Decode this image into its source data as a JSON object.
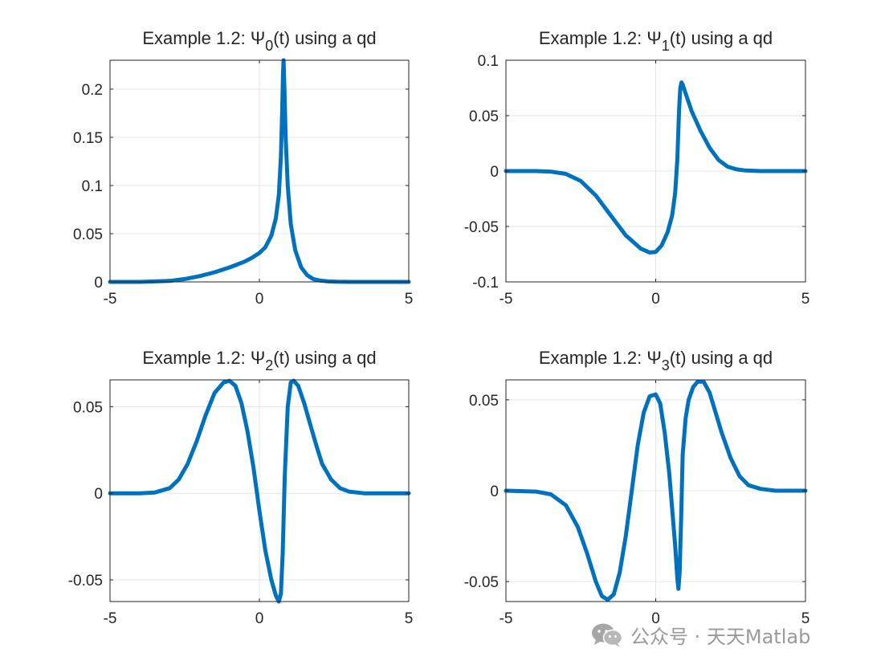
{
  "watermark": {
    "text": "公众号 · 天天Matlab",
    "icon": "wechat-icon"
  },
  "line_color": "#0072BD",
  "chart_data": [
    {
      "type": "line",
      "title": {
        "prefix": "Example 1.2: ",
        "symbol": "Ψ",
        "subscript": "0",
        "suffix": "(t) using a qd"
      },
      "xlim": [
        -5,
        5
      ],
      "ylim": [
        0,
        0.23
      ],
      "xticks": [
        -5,
        0,
        5
      ],
      "xtick_labels": [
        "-5",
        "0",
        "5"
      ],
      "yticks": [
        0,
        0.05,
        0.1,
        0.15,
        0.2
      ],
      "ytick_labels": [
        "0",
        "0.05",
        "0.1",
        "0.15",
        "0.2"
      ],
      "grid": true,
      "series": [
        {
          "x": [
            -5,
            -4,
            -3.5,
            -3,
            -2.5,
            -2,
            -1.5,
            -1,
            -0.5,
            -0.25,
            0,
            0.2,
            0.4,
            0.55,
            0.65,
            0.72,
            0.76,
            0.79,
            0.81,
            0.84,
            0.88,
            0.95,
            1.05,
            1.2,
            1.4,
            1.6,
            1.8,
            2.0,
            2.3,
            2.6,
            3,
            4,
            5
          ],
          "y": [
            0,
            0,
            0.0005,
            0.001,
            0.003,
            0.006,
            0.01,
            0.015,
            0.021,
            0.025,
            0.03,
            0.036,
            0.048,
            0.066,
            0.09,
            0.13,
            0.175,
            0.215,
            0.23,
            0.2,
            0.15,
            0.1,
            0.06,
            0.033,
            0.015,
            0.007,
            0.003,
            0.0015,
            0.0005,
            0.0002,
            0,
            0,
            0
          ]
        }
      ]
    },
    {
      "type": "line",
      "title": {
        "prefix": "Example 1.2: ",
        "symbol": "Ψ",
        "subscript": "1",
        "suffix": "(t) using a qd"
      },
      "xlim": [
        -5,
        5
      ],
      "ylim": [
        -0.1,
        0.1
      ],
      "xticks": [
        -5,
        0,
        5
      ],
      "xtick_labels": [
        "-5",
        "0",
        "5"
      ],
      "yticks": [
        -0.1,
        -0.05,
        0,
        0.05,
        0.1
      ],
      "ytick_labels": [
        "-0.1",
        "-0.05",
        "0",
        "0.05",
        "0.1"
      ],
      "grid": true,
      "series": [
        {
          "x": [
            -5,
            -4,
            -3.5,
            -3,
            -2.5,
            -2,
            -1.5,
            -1,
            -0.5,
            -0.2,
            0,
            0.2,
            0.4,
            0.55,
            0.65,
            0.72,
            0.78,
            0.82,
            0.86,
            0.9,
            1.0,
            1.2,
            1.5,
            1.8,
            2.1,
            2.4,
            2.7,
            3,
            3.5,
            4,
            5
          ],
          "y": [
            0,
            0,
            -0.0005,
            -0.0025,
            -0.009,
            -0.022,
            -0.04,
            -0.058,
            -0.07,
            -0.0735,
            -0.073,
            -0.067,
            -0.055,
            -0.04,
            -0.02,
            0.01,
            0.055,
            0.075,
            0.08,
            0.078,
            0.07,
            0.054,
            0.036,
            0.021,
            0.01,
            0.004,
            0.0015,
            0.0005,
            0,
            0,
            0
          ]
        }
      ]
    },
    {
      "type": "line",
      "title": {
        "prefix": "Example 1.2: ",
        "symbol": "Ψ",
        "subscript": "2",
        "suffix": "(t) using a qd"
      },
      "xlim": [
        -5,
        5
      ],
      "ylim": [
        -0.0625,
        0.0655
      ],
      "xticks": [
        -5,
        0,
        5
      ],
      "xtick_labels": [
        "-5",
        "0",
        "5"
      ],
      "yticks": [
        -0.05,
        0,
        0.05
      ],
      "ytick_labels": [
        "-0.05",
        "0",
        "0.05"
      ],
      "grid": true,
      "series": [
        {
          "x": [
            -5,
            -4,
            -3.5,
            -3,
            -2.7,
            -2.4,
            -2.1,
            -1.8,
            -1.5,
            -1.2,
            -1.0,
            -0.8,
            -0.6,
            -0.4,
            -0.2,
            0,
            0.2,
            0.4,
            0.55,
            0.65,
            0.72,
            0.78,
            0.85,
            0.95,
            1.05,
            1.15,
            1.3,
            1.5,
            1.7,
            1.9,
            2.1,
            2.4,
            2.7,
            3,
            3.5,
            4,
            5
          ],
          "y": [
            0,
            0,
            0.0005,
            0.003,
            0.008,
            0.017,
            0.03,
            0.045,
            0.058,
            0.064,
            0.065,
            0.062,
            0.052,
            0.036,
            0.015,
            -0.01,
            -0.033,
            -0.05,
            -0.059,
            -0.0625,
            -0.058,
            -0.035,
            0.01,
            0.05,
            0.064,
            0.065,
            0.062,
            0.052,
            0.04,
            0.028,
            0.017,
            0.008,
            0.003,
            0.001,
            0,
            0,
            0
          ]
        }
      ]
    },
    {
      "type": "line",
      "title": {
        "prefix": "Example 1.2: ",
        "symbol": "Ψ",
        "subscript": "3",
        "suffix": "(t) using a qd"
      },
      "xlim": [
        -5,
        5
      ],
      "ylim": [
        -0.061,
        0.061
      ],
      "xticks": [
        -5,
        0,
        5
      ],
      "xtick_labels": [
        "-5",
        "0",
        "5"
      ],
      "yticks": [
        -0.05,
        0,
        0.05
      ],
      "ytick_labels": [
        "-0.05",
        "0",
        "0.05"
      ],
      "grid": true,
      "series": [
        {
          "x": [
            -5,
            -4,
            -3.5,
            -3,
            -2.6,
            -2.3,
            -2.0,
            -1.8,
            -1.6,
            -1.4,
            -1.2,
            -1.0,
            -0.8,
            -0.6,
            -0.4,
            -0.2,
            0,
            0.15,
            0.3,
            0.45,
            0.55,
            0.65,
            0.72,
            0.76,
            0.8,
            0.85,
            0.9,
            1.0,
            1.1,
            1.25,
            1.4,
            1.6,
            1.8,
            2.0,
            2.2,
            2.5,
            2.8,
            3.1,
            3.5,
            4,
            5
          ],
          "y": [
            0,
            -0.0005,
            -0.002,
            -0.008,
            -0.02,
            -0.034,
            -0.05,
            -0.058,
            -0.06,
            -0.057,
            -0.045,
            -0.025,
            0,
            0.025,
            0.043,
            0.052,
            0.053,
            0.048,
            0.032,
            0.01,
            -0.01,
            -0.03,
            -0.048,
            -0.054,
            -0.045,
            -0.015,
            0.02,
            0.04,
            0.05,
            0.057,
            0.06,
            0.06,
            0.054,
            0.043,
            0.032,
            0.018,
            0.008,
            0.003,
            0.001,
            0,
            0
          ]
        }
      ]
    }
  ]
}
